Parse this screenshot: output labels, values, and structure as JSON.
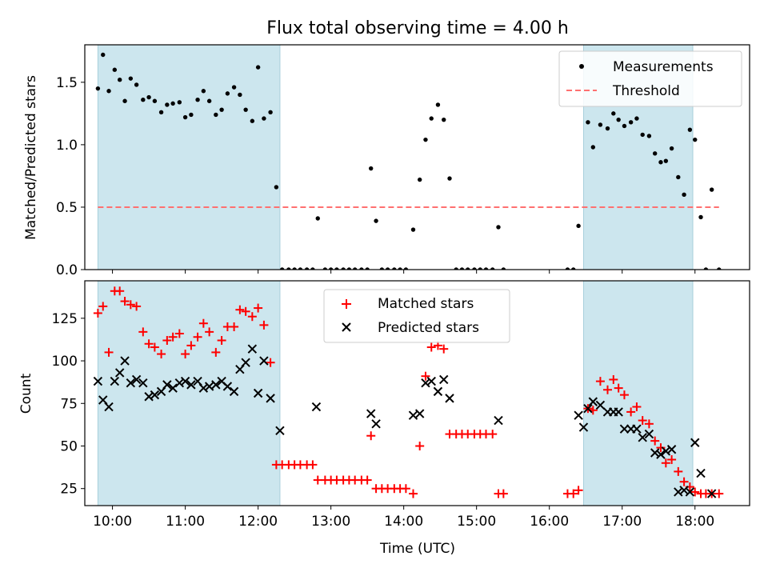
{
  "title": "Flux total observing time = 4.00 h",
  "chart_data": [
    {
      "type": "scatter",
      "ylabel": "Matched/Predicted stars",
      "xlim": [
        9.62,
        18.75
      ],
      "ylim": [
        0,
        1.8
      ],
      "yticks": [
        0.0,
        0.5,
        1.0,
        1.5
      ],
      "ytick_labels": [
        "0.0",
        "0.5",
        "1.0",
        "1.5"
      ],
      "shaded_intervals": [
        [
          9.8,
          12.3
        ],
        [
          16.47,
          17.97
        ]
      ],
      "shade_color": "#cce6ee",
      "legend": {
        "placement": "upper right",
        "entries": [
          "Measurements",
          "Threshold"
        ]
      },
      "series": [
        {
          "name": "Measurements",
          "marker": "dot",
          "color": "#000000",
          "x": [
            9.8,
            9.87,
            9.95,
            10.03,
            10.1,
            10.17,
            10.25,
            10.33,
            10.42,
            10.5,
            10.58,
            10.67,
            10.75,
            10.83,
            10.92,
            11.0,
            11.08,
            11.17,
            11.25,
            11.33,
            11.42,
            11.5,
            11.58,
            11.67,
            11.75,
            11.83,
            11.92,
            12.0,
            12.08,
            12.17,
            12.25,
            12.33,
            12.42,
            12.5,
            12.58,
            12.67,
            12.75,
            12.82,
            12.92,
            13.0,
            13.08,
            13.17,
            13.25,
            13.33,
            13.42,
            13.5,
            13.55,
            13.62,
            13.7,
            13.78,
            13.87,
            13.95,
            14.03,
            14.13,
            14.22,
            14.3,
            14.38,
            14.47,
            14.55,
            14.63,
            14.72,
            14.8,
            14.88,
            14.97,
            15.05,
            15.13,
            15.22,
            15.3,
            15.37,
            16.25,
            16.33,
            16.4,
            16.53,
            16.6,
            16.7,
            16.8,
            16.88,
            16.95,
            17.03,
            17.12,
            17.2,
            17.28,
            17.37,
            17.45,
            17.53,
            17.6,
            17.68,
            17.77,
            17.85,
            17.93,
            18.0,
            18.08,
            18.15,
            18.23,
            18.33
          ],
          "y": [
            1.45,
            1.72,
            1.43,
            1.6,
            1.52,
            1.35,
            1.53,
            1.48,
            1.36,
            1.38,
            1.35,
            1.26,
            1.32,
            1.33,
            1.34,
            1.22,
            1.24,
            1.36,
            1.43,
            1.35,
            1.24,
            1.28,
            1.41,
            1.46,
            1.4,
            1.28,
            1.19,
            1.62,
            1.21,
            1.26,
            0.66,
            0.0,
            0.0,
            0.0,
            0.0,
            0.0,
            0.0,
            0.41,
            0.0,
            0.0,
            0.0,
            0.0,
            0.0,
            0.0,
            0.0,
            0.0,
            0.81,
            0.39,
            0.0,
            0.0,
            0.0,
            0.0,
            0.0,
            0.32,
            0.72,
            1.04,
            1.21,
            1.32,
            1.2,
            0.73,
            0.0,
            0.0,
            0.0,
            0.0,
            0.0,
            0.0,
            0.0,
            0.34,
            0.0,
            0.0,
            0.0,
            0.35,
            1.18,
            0.98,
            1.16,
            1.13,
            1.25,
            1.2,
            1.15,
            1.18,
            1.21,
            1.08,
            1.07,
            0.93,
            0.86,
            0.87,
            0.97,
            0.74,
            0.6,
            1.12,
            1.04,
            0.42,
            0.0,
            0.64,
            0.0
          ]
        },
        {
          "name": "Threshold",
          "type": "line",
          "style": "dashed",
          "color": "#ff7070",
          "x": [
            9.8,
            18.33
          ],
          "y": [
            0.5,
            0.5
          ]
        }
      ]
    },
    {
      "type": "scatter",
      "xlabel": "Time (UTC)",
      "ylabel": "Count",
      "xlim": [
        9.62,
        18.75
      ],
      "ylim": [
        15,
        147
      ],
      "xticks": [
        10,
        11,
        12,
        13,
        14,
        15,
        16,
        17,
        18
      ],
      "xtick_labels": [
        "10:00",
        "11:00",
        "12:00",
        "13:00",
        "14:00",
        "15:00",
        "16:00",
        "17:00",
        "18:00"
      ],
      "yticks": [
        25,
        50,
        75,
        100,
        125
      ],
      "ytick_labels": [
        "25",
        "50",
        "75",
        "100",
        "125"
      ],
      "shaded_intervals": [
        [
          9.8,
          12.3
        ],
        [
          16.47,
          17.97
        ]
      ],
      "shade_color": "#cce6ee",
      "legend": {
        "placement": "upper center",
        "entries": [
          "Matched stars",
          "Predicted stars"
        ]
      },
      "series": [
        {
          "name": "Matched stars",
          "marker": "plus",
          "color": "#ff0000",
          "x": [
            9.8,
            9.87,
            9.95,
            10.03,
            10.1,
            10.17,
            10.25,
            10.33,
            10.42,
            10.5,
            10.58,
            10.67,
            10.75,
            10.83,
            10.92,
            11.0,
            11.08,
            11.17,
            11.25,
            11.33,
            11.42,
            11.5,
            11.58,
            11.67,
            11.75,
            11.83,
            11.92,
            12.0,
            12.08,
            12.17,
            12.25,
            12.33,
            12.42,
            12.5,
            12.58,
            12.67,
            12.75,
            12.82,
            12.92,
            13.0,
            13.08,
            13.17,
            13.25,
            13.33,
            13.42,
            13.5,
            13.55,
            13.62,
            13.7,
            13.78,
            13.87,
            13.95,
            14.03,
            14.13,
            14.22,
            14.3,
            14.38,
            14.47,
            14.55,
            14.63,
            14.72,
            14.8,
            14.88,
            14.97,
            15.05,
            15.13,
            15.22,
            15.3,
            15.37,
            16.25,
            16.33,
            16.4,
            16.53,
            16.6,
            16.7,
            16.8,
            16.88,
            16.95,
            17.03,
            17.12,
            17.2,
            17.28,
            17.37,
            17.45,
            17.53,
            17.6,
            17.68,
            17.77,
            17.85,
            17.93,
            18.0,
            18.08,
            18.15,
            18.23,
            18.33
          ],
          "y": [
            128,
            132,
            105,
            141,
            141,
            135,
            133,
            132,
            117,
            110,
            108,
            104,
            112,
            114,
            116,
            104,
            109,
            114,
            122,
            117,
            105,
            112,
            120,
            120,
            130,
            129,
            126,
            131,
            121,
            99,
            39,
            39,
            39,
            39,
            39,
            39,
            39,
            30,
            30,
            30,
            30,
            30,
            30,
            30,
            30,
            30,
            56,
            25,
            25,
            25,
            25,
            25,
            25,
            22,
            50,
            91,
            108,
            109,
            107,
            57,
            57,
            57,
            57,
            57,
            57,
            57,
            57,
            22,
            22,
            22,
            22,
            24,
            72,
            71,
            88,
            83,
            89,
            84,
            80,
            70,
            73,
            65,
            63,
            53,
            49,
            40,
            42,
            35,
            29,
            26,
            23,
            22,
            22,
            22,
            22
          ]
        },
        {
          "name": "Predicted stars",
          "marker": "x",
          "color": "#000000",
          "x": [
            9.8,
            9.87,
            9.95,
            10.03,
            10.1,
            10.17,
            10.25,
            10.33,
            10.42,
            10.5,
            10.58,
            10.67,
            10.75,
            10.83,
            10.92,
            11.0,
            11.08,
            11.17,
            11.25,
            11.33,
            11.42,
            11.5,
            11.58,
            11.67,
            11.75,
            11.83,
            11.92,
            12.0,
            12.08,
            12.17,
            12.3,
            12.8,
            13.55,
            13.62,
            14.13,
            14.22,
            14.3,
            14.38,
            14.47,
            14.55,
            14.63,
            15.3,
            16.4,
            16.47,
            16.53,
            16.6,
            16.7,
            16.8,
            16.88,
            16.95,
            17.03,
            17.12,
            17.2,
            17.28,
            17.37,
            17.45,
            17.53,
            17.6,
            17.68,
            17.77,
            17.85,
            17.93,
            18.0,
            18.08,
            18.23
          ],
          "y": [
            88,
            77,
            73,
            88,
            93,
            100,
            87,
            89,
            87,
            79,
            80,
            82,
            86,
            84,
            87,
            88,
            86,
            88,
            84,
            85,
            86,
            88,
            85,
            82,
            95,
            99,
            107,
            81,
            100,
            78,
            59,
            73,
            69,
            63,
            68,
            69,
            87,
            88,
            82,
            89,
            78,
            65,
            68,
            61,
            72,
            76,
            74,
            70,
            70,
            70,
            60,
            60,
            60,
            55,
            57,
            46,
            45,
            47,
            48,
            23,
            24,
            23,
            52,
            34,
            22
          ]
        }
      ]
    }
  ]
}
